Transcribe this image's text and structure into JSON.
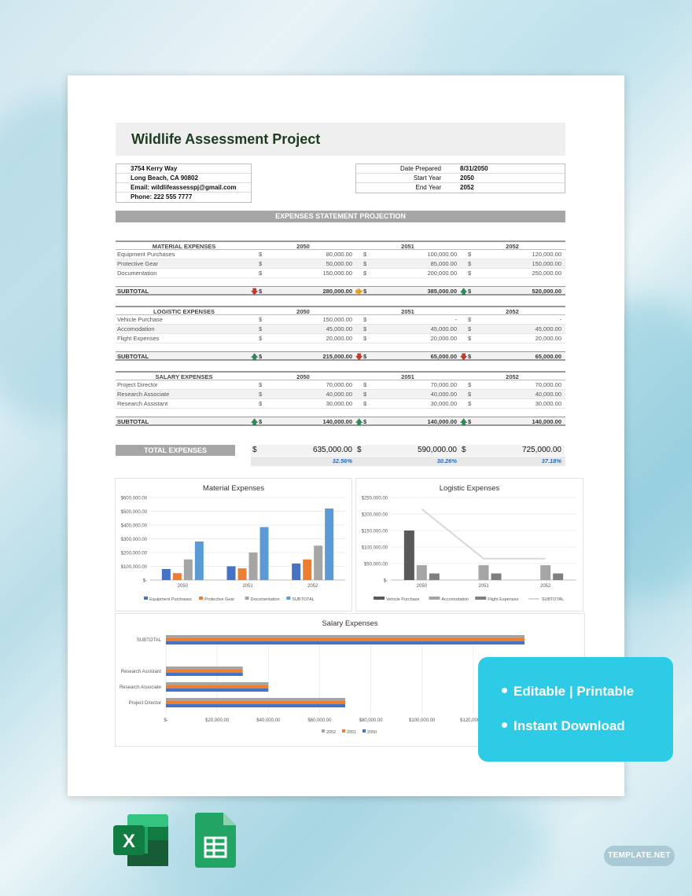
{
  "document": {
    "title": "Wildlife Assessment Project",
    "address": [
      "3754 Kerry Way",
      "Long Beach, CA 90802",
      "Email: wildlifeassesspj@gmail.com",
      "Phone: 222 555 7777"
    ],
    "info": [
      {
        "k": "Date Prepared",
        "v": "8/31/2050"
      },
      {
        "k": "Start Year",
        "v": "2050"
      },
      {
        "k": "End Year",
        "v": "2052"
      }
    ],
    "band_title": "EXPENSES STATEMENT PROJECTION",
    "currency": "$",
    "sections": [
      {
        "header": "MATERIAL EXPENSES",
        "years": [
          "2050",
          "2051",
          "2052"
        ],
        "rows": [
          {
            "label": "Equipment Purchases",
            "values": [
              "80,000.00",
              "100,000.00",
              "120,000.00"
            ]
          },
          {
            "label": "Protective Gear",
            "values": [
              "50,000.00",
              "85,000.00",
              "150,000.00"
            ]
          },
          {
            "label": "Documentation",
            "values": [
              "150,000.00",
              "200,000.00",
              "250,000.00"
            ]
          }
        ],
        "subtotal_label": "SUBTOTAL",
        "subtotal": [
          "280,000.00",
          "385,000.00",
          "520,000.00"
        ],
        "trend": [
          "down",
          "right",
          "up"
        ]
      },
      {
        "header": "LOGISTIC EXPENSES",
        "years": [
          "2050",
          "2051",
          "2052"
        ],
        "rows": [
          {
            "label": "Vehicle Purchase",
            "values": [
              "150,000.00",
              "-",
              "-"
            ]
          },
          {
            "label": "Accomodation",
            "values": [
              "45,000.00",
              "45,000.00",
              "45,000.00"
            ]
          },
          {
            "label": "Flight Expenses",
            "values": [
              "20,000.00",
              "20,000.00",
              "20,000.00"
            ]
          }
        ],
        "subtotal_label": "SUBTOTAL",
        "subtotal": [
          "215,000.00",
          "65,000.00",
          "65,000.00"
        ],
        "trend": [
          "up",
          "down",
          "down"
        ]
      },
      {
        "header": "SALARY EXPENSES",
        "years": [
          "2050",
          "2051",
          "2052"
        ],
        "rows": [
          {
            "label": "Project Director",
            "values": [
              "70,000.00",
              "70,000.00",
              "70,000.00"
            ]
          },
          {
            "label": "Research Associate",
            "values": [
              "40,000.00",
              "40,000.00",
              "40,000.00"
            ]
          },
          {
            "label": "Research Assistant",
            "values": [
              "30,000.00",
              "30,000.00",
              "30,000.00"
            ]
          }
        ],
        "subtotal_label": "SUBTOTAL",
        "subtotal": [
          "140,000.00",
          "140,000.00",
          "140,000.00"
        ],
        "trend": [
          "up",
          "up",
          "up"
        ]
      }
    ],
    "total_label": "TOTAL EXPENSES",
    "totals": [
      "635,000.00",
      "590,000.00",
      "725,000.00"
    ],
    "percents": [
      "32.56%",
      "30.26%",
      "37.18%"
    ]
  },
  "chart_data": [
    {
      "type": "bar",
      "title": "Material Expenses",
      "categories": [
        "2050",
        "2051",
        "2052"
      ],
      "series": [
        {
          "name": "Equipment Purchases",
          "values": [
            80000,
            100000,
            120000
          ],
          "color": "#4472c4"
        },
        {
          "name": "Protective Gear",
          "values": [
            50000,
            85000,
            150000
          ],
          "color": "#ed7d31"
        },
        {
          "name": "Documentation",
          "values": [
            150000,
            200000,
            250000
          ],
          "color": "#a5a5a5"
        },
        {
          "name": "SUBTOTAL",
          "values": [
            280000,
            385000,
            520000
          ],
          "color": "#5b9bd5"
        }
      ],
      "ylim": [
        0,
        600000
      ],
      "yticks": [
        "$-",
        "$100,000.00",
        "$200,000.00",
        "$300,000.00",
        "$400,000.00",
        "$500,000.00",
        "$600,000.00"
      ],
      "legend": "bottom"
    },
    {
      "type": "bar",
      "title": "Logistic Expenses",
      "categories": [
        "2050",
        "2051",
        "2052"
      ],
      "series": [
        {
          "name": "Vehicle Purchase",
          "values": [
            150000,
            0,
            0
          ],
          "color": "#595959"
        },
        {
          "name": "Accomodation",
          "values": [
            45000,
            45000,
            45000
          ],
          "color": "#a5a5a5"
        },
        {
          "name": "Flight Expenses",
          "values": [
            20000,
            20000,
            20000
          ],
          "color": "#7f7f7f"
        },
        {
          "name": "SUBTOTAL",
          "values": [
            215000,
            65000,
            65000
          ],
          "color": "#d9d9d9",
          "kind": "line"
        }
      ],
      "ylim": [
        0,
        250000
      ],
      "yticks": [
        "$-",
        "$50,000.00",
        "$100,000.00",
        "$150,000.00",
        "$200,000.00",
        "$250,000.00"
      ],
      "legend": "bottom"
    },
    {
      "type": "bar",
      "orientation": "horizontal",
      "title": "Salary Expenses",
      "categories": [
        "Project Director",
        "Research Associate",
        "Research Assistant",
        "SUBTOTAL"
      ],
      "series": [
        {
          "name": "2052",
          "values": [
            70000,
            40000,
            30000,
            140000
          ],
          "color": "#a5a5a5"
        },
        {
          "name": "2051",
          "values": [
            70000,
            40000,
            30000,
            140000
          ],
          "color": "#ed7d31"
        },
        {
          "name": "2050",
          "values": [
            70000,
            40000,
            30000,
            140000
          ],
          "color": "#4472c4"
        }
      ],
      "xlim": [
        0,
        140000
      ],
      "xticks": [
        "$-",
        "$20,000.00",
        "$40,000.00",
        "$60,000.00",
        "$80,000.00",
        "$100,000.00",
        "$120,000.00"
      ],
      "legend": "bottom"
    }
  ],
  "badge": {
    "items": [
      "Editable | Printable",
      "Instant Download"
    ]
  },
  "brand": "TEMPLATE.NET",
  "apps": [
    {
      "name": "excel-icon",
      "letter": "X",
      "color": "#1d6f42"
    },
    {
      "name": "google-sheets-icon",
      "color": "#21a464"
    }
  ]
}
